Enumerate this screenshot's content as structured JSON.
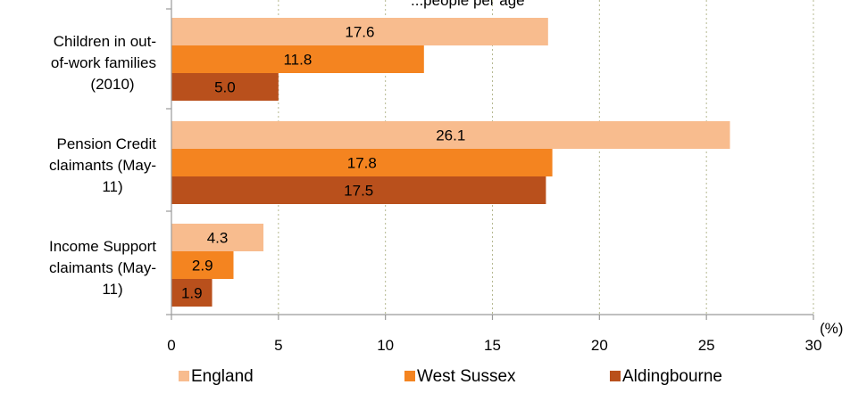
{
  "chart_data": {
    "type": "bar",
    "orientation": "horizontal",
    "title": "...people per age",
    "categories": [
      [
        "Children in out-",
        "of-work families",
        "(2010)"
      ],
      [
        "Pension Credit",
        "claimants (May-",
        "11)"
      ],
      [
        "Income Support",
        "claimants (May-",
        "11)"
      ]
    ],
    "series": [
      {
        "name": "England",
        "color": "#f8bc8e",
        "values": [
          17.6,
          26.1,
          4.3
        ]
      },
      {
        "name": "West Sussex",
        "color": "#f48420",
        "values": [
          11.8,
          17.8,
          2.9
        ]
      },
      {
        "name": "Aldingbourne",
        "color": "#b9501c",
        "values": [
          5.0,
          17.5,
          1.9
        ]
      }
    ],
    "xlim": [
      0,
      30
    ],
    "xticks": [
      0,
      5,
      10,
      15,
      20,
      25,
      30
    ],
    "unit_label": "(%)",
    "grid": true,
    "legend_position": "bottom"
  }
}
